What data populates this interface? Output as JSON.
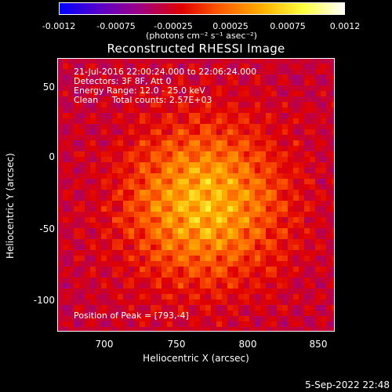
{
  "colorbar": {
    "ticks": [
      "-0.0012",
      "-0.00075",
      "-0.00025",
      "0.00025",
      "0.00075",
      "0.0012"
    ],
    "units_label": "(photons cm⁻² s⁻¹ asec⁻²)",
    "gradient": [
      "#0000ff",
      "#5a00c8",
      "#a00080",
      "#e00000",
      "#ff6000",
      "#ffb000",
      "#ffff40",
      "#ffffff"
    ]
  },
  "title": "Reconstructed RHESSI Image",
  "annotations": {
    "time": "21-Jul-2016 22:00:24.000 to 22:06:24.000",
    "detectors": "Detectors: 3F 8F, Att 0",
    "energy": "Energy Range: 12.0 - 25.0 keV",
    "method": "Clean     Total counts: 2.57E+03",
    "peak": "Position of Peak = [793,-4]"
  },
  "axes": {
    "x_title": "Heliocentric X (arcsec)",
    "y_title": "Heliocentric Y (arcsec)",
    "x_ticks": [
      "700",
      "750",
      "800",
      "850"
    ],
    "y_ticks": [
      "50",
      "0",
      "-50",
      "-100"
    ]
  },
  "footer": {
    "timestamp": "5-Sep-2022 22:48"
  }
}
